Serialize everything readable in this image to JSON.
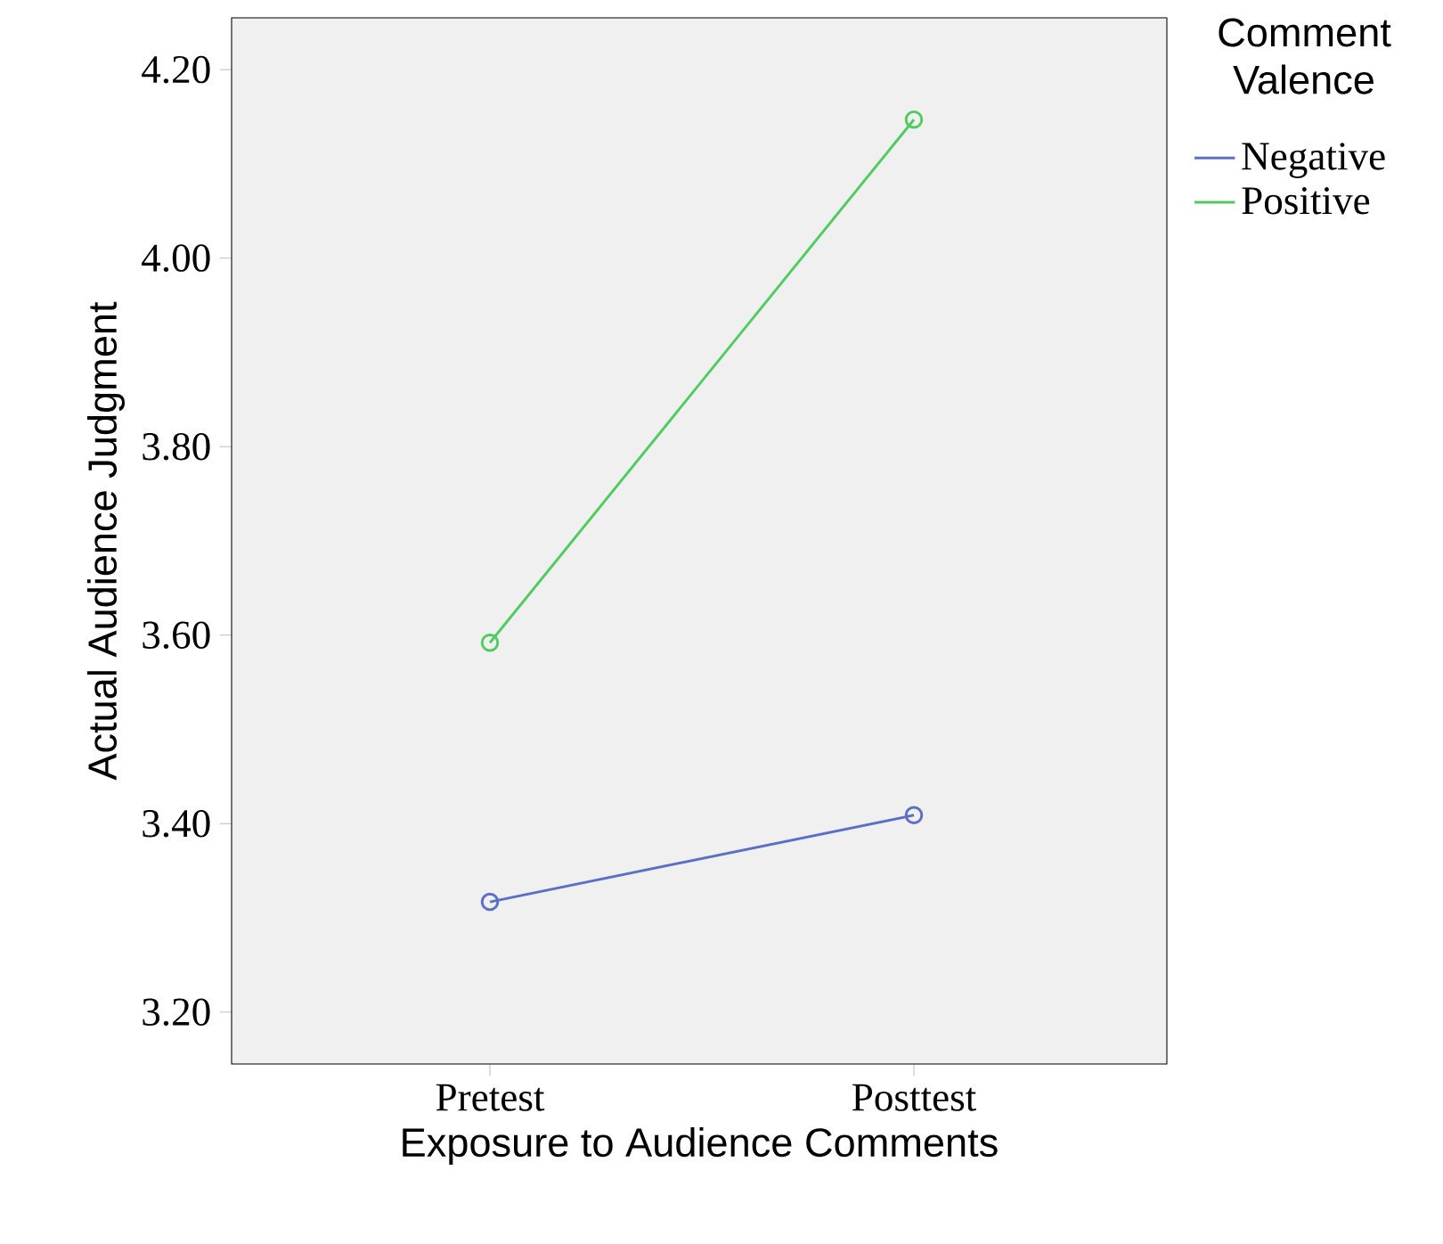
{
  "chart_data": {
    "type": "line",
    "xlabel": "Exposure to Audience Comments",
    "ylabel": "Actual Audience Judgment",
    "legend_title": "Comment Valence",
    "categories": [
      "Pretest",
      "Posttest"
    ],
    "series": [
      {
        "name": "Negative",
        "color": "#5b6fc4",
        "values": [
          3.317,
          3.409
        ]
      },
      {
        "name": "Positive",
        "color": "#4fcc5e",
        "values": [
          3.592,
          4.147
        ]
      }
    ],
    "ylim": [
      3.145,
      4.255
    ],
    "yticks": [
      {
        "value": 3.2,
        "label": "3.20"
      },
      {
        "value": 3.4,
        "label": "3.40"
      },
      {
        "value": 3.6,
        "label": "3.60"
      },
      {
        "value": 3.8,
        "label": "3.80"
      },
      {
        "value": 4.0,
        "label": "4.00"
      },
      {
        "value": 4.2,
        "label": "4.20"
      }
    ],
    "marker": "circle",
    "line_style": "solid",
    "legend": "right",
    "grid": false
  }
}
